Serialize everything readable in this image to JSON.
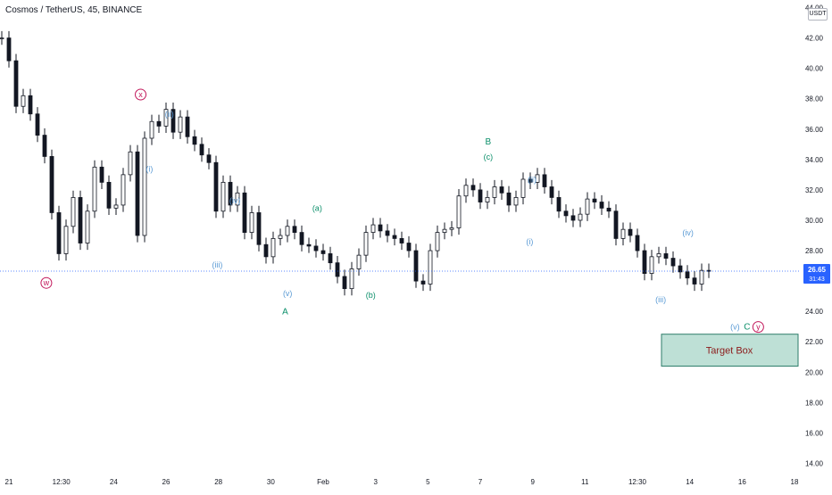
{
  "header": {
    "symbol_title": "Cosmos / TetherUS, 45, BINANCE"
  },
  "price_axis": {
    "currency_label": "USDT"
  },
  "last_price": {
    "value": "26.65",
    "countdown": "31:43",
    "color": "#2962ff"
  },
  "colors": {
    "wave_blue": "#5b9bd5",
    "wave_green": "#0b8f6a",
    "wave_red": "#c2185b",
    "candles": "#131722",
    "target_fill": "#a8d5c8",
    "target_border": "#2e7d6a",
    "target_text": "#8b1a1a"
  },
  "chart_data": {
    "type": "line",
    "title": "Cosmos / TetherUS, 45, BINANCE",
    "ylim": [
      13.5,
      44.5
    ],
    "yticks": [
      "14.00",
      "16.00",
      "18.00",
      "20.00",
      "22.00",
      "24.00",
      "26.00",
      "28.00",
      "30.00",
      "32.00",
      "34.00",
      "36.00",
      "38.00",
      "40.00",
      "42.00",
      "44.00"
    ],
    "x_ticks": [
      "21",
      "12:30",
      "24",
      "26",
      "28",
      "30",
      "Feb",
      "3",
      "5",
      "7",
      "9",
      "11",
      "12:30",
      "14",
      "16",
      "18"
    ],
    "series": [
      {
        "values": [
          42.0,
          40.5,
          37.5,
          38.2,
          37.0,
          35.6,
          34.2,
          30.5,
          27.8,
          29.6,
          31.5,
          28.5,
          30.6,
          33.5,
          32.5,
          30.8,
          31.0,
          33.0,
          34.5,
          29.0,
          35.4,
          36.5,
          36.2,
          37.3,
          35.8,
          36.8,
          35.5,
          35.0,
          34.3,
          33.8,
          30.6,
          32.5,
          31.0,
          31.8,
          29.2,
          30.5,
          28.4,
          27.6,
          28.8,
          29.0,
          29.6,
          29.2,
          28.4,
          28.3,
          28.0,
          27.8,
          27.2,
          26.3,
          25.5,
          26.8,
          27.7,
          29.2,
          29.7,
          29.3,
          29.0,
          28.8,
          28.5,
          28.0,
          26.0,
          25.8,
          28.0,
          29.2,
          29.4,
          29.5,
          31.6,
          32.3,
          32.0,
          31.2,
          31.5,
          32.2,
          31.8,
          31.0,
          31.5,
          32.7,
          32.5,
          33.0,
          32.2,
          31.5,
          30.6,
          30.3,
          30.0,
          30.4,
          31.4,
          31.2,
          30.8,
          30.6,
          28.8,
          29.4,
          29.0,
          28.0,
          26.5,
          27.6,
          27.8,
          27.5,
          27.0,
          26.6,
          26.2,
          25.8,
          26.7,
          26.65
        ]
      }
    ],
    "last_price": 26.65,
    "annotations": [
      {
        "text": "x",
        "x_pct": 0.176,
        "price": 38.1,
        "color": "red",
        "circle": true
      },
      {
        "text": "w",
        "x_pct": 0.058,
        "price": 25.7,
        "color": "red",
        "circle": true
      },
      {
        "text": "(ii)",
        "x_pct": 0.212,
        "price": 36.8,
        "color": "blue"
      },
      {
        "text": "(i)",
        "x_pct": 0.187,
        "price": 33.2,
        "color": "blue"
      },
      {
        "text": "(iv)",
        "x_pct": 0.294,
        "price": 31.1,
        "color": "blue"
      },
      {
        "text": "(iii)",
        "x_pct": 0.272,
        "price": 26.9,
        "color": "blue"
      },
      {
        "text": "(v)",
        "x_pct": 0.36,
        "price": 25.0,
        "color": "blue"
      },
      {
        "text": "A",
        "x_pct": 0.357,
        "price": 23.8,
        "color": "green"
      },
      {
        "text": "(a)",
        "x_pct": 0.397,
        "price": 30.6,
        "color": "green"
      },
      {
        "text": "(b)",
        "x_pct": 0.464,
        "price": 24.9,
        "color": "green"
      },
      {
        "text": "B",
        "x_pct": 0.611,
        "price": 35.0,
        "color": "green"
      },
      {
        "text": "(c)",
        "x_pct": 0.611,
        "price": 34.0,
        "color": "green"
      },
      {
        "text": "(ii)",
        "x_pct": 0.666,
        "price": 32.5,
        "color": "blue"
      },
      {
        "text": "(i)",
        "x_pct": 0.663,
        "price": 28.4,
        "color": "blue"
      },
      {
        "text": "(iv)",
        "x_pct": 0.861,
        "price": 29.0,
        "color": "blue"
      },
      {
        "text": "(iii)",
        "x_pct": 0.827,
        "price": 24.6,
        "color": "blue"
      },
      {
        "text": "(v)",
        "x_pct": 0.92,
        "price": 22.8,
        "color": "blue"
      },
      {
        "text": "C",
        "x_pct": 0.935,
        "price": 22.8,
        "color": "green"
      },
      {
        "text": "y",
        "x_pct": 0.949,
        "price": 22.8,
        "color": "red",
        "circle": true
      }
    ],
    "target_box": {
      "label": "Target Box",
      "price_top": 22.5,
      "price_bottom": 20.4
    }
  }
}
